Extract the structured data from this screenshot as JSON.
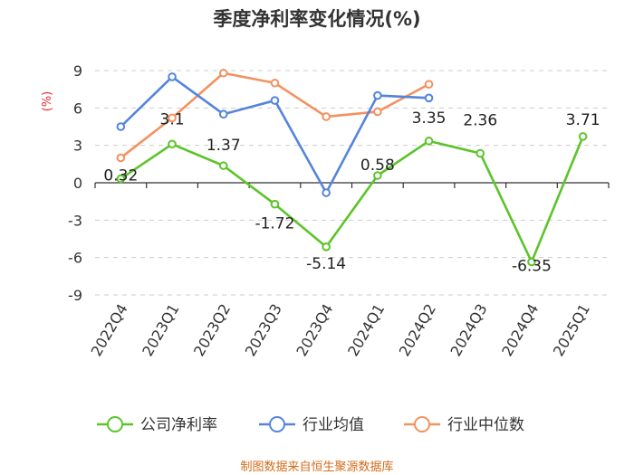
{
  "chart_data": {
    "type": "line",
    "title": "季度净利率变化情况(%)",
    "ylabel": "(%)",
    "categories": [
      "2022Q4",
      "2023Q1",
      "2023Q2",
      "2023Q3",
      "2023Q4",
      "2024Q1",
      "2024Q2",
      "2024Q3",
      "2024Q4",
      "2025Q1"
    ],
    "yticks": [
      9,
      6,
      3,
      0,
      -3,
      -6,
      -9
    ],
    "ylim": [
      -9,
      9
    ],
    "legend_position": "bottom",
    "series": [
      {
        "name": "公司净利率",
        "color": "#5cc42a",
        "values": [
          0.32,
          3.1,
          1.37,
          -1.72,
          -5.14,
          0.58,
          3.35,
          2.36,
          -6.35,
          3.71
        ],
        "labels": [
          "0.32",
          "3.1",
          "1.37",
          "-1.72",
          "-5.14",
          "0.58",
          "3.35",
          "2.36",
          "-6.35",
          "3.71"
        ]
      },
      {
        "name": "行业均值",
        "color": "#5584dc",
        "values": [
          4.5,
          8.5,
          5.5,
          6.6,
          -0.8,
          7.0,
          6.8,
          null,
          null,
          null
        ]
      },
      {
        "name": "行业中位数",
        "color": "#f4915f",
        "values": [
          2.0,
          5.2,
          8.8,
          8.0,
          5.3,
          5.7,
          7.9,
          null,
          null,
          null
        ]
      }
    ]
  },
  "source": "制图数据来自恒生聚源数据库"
}
